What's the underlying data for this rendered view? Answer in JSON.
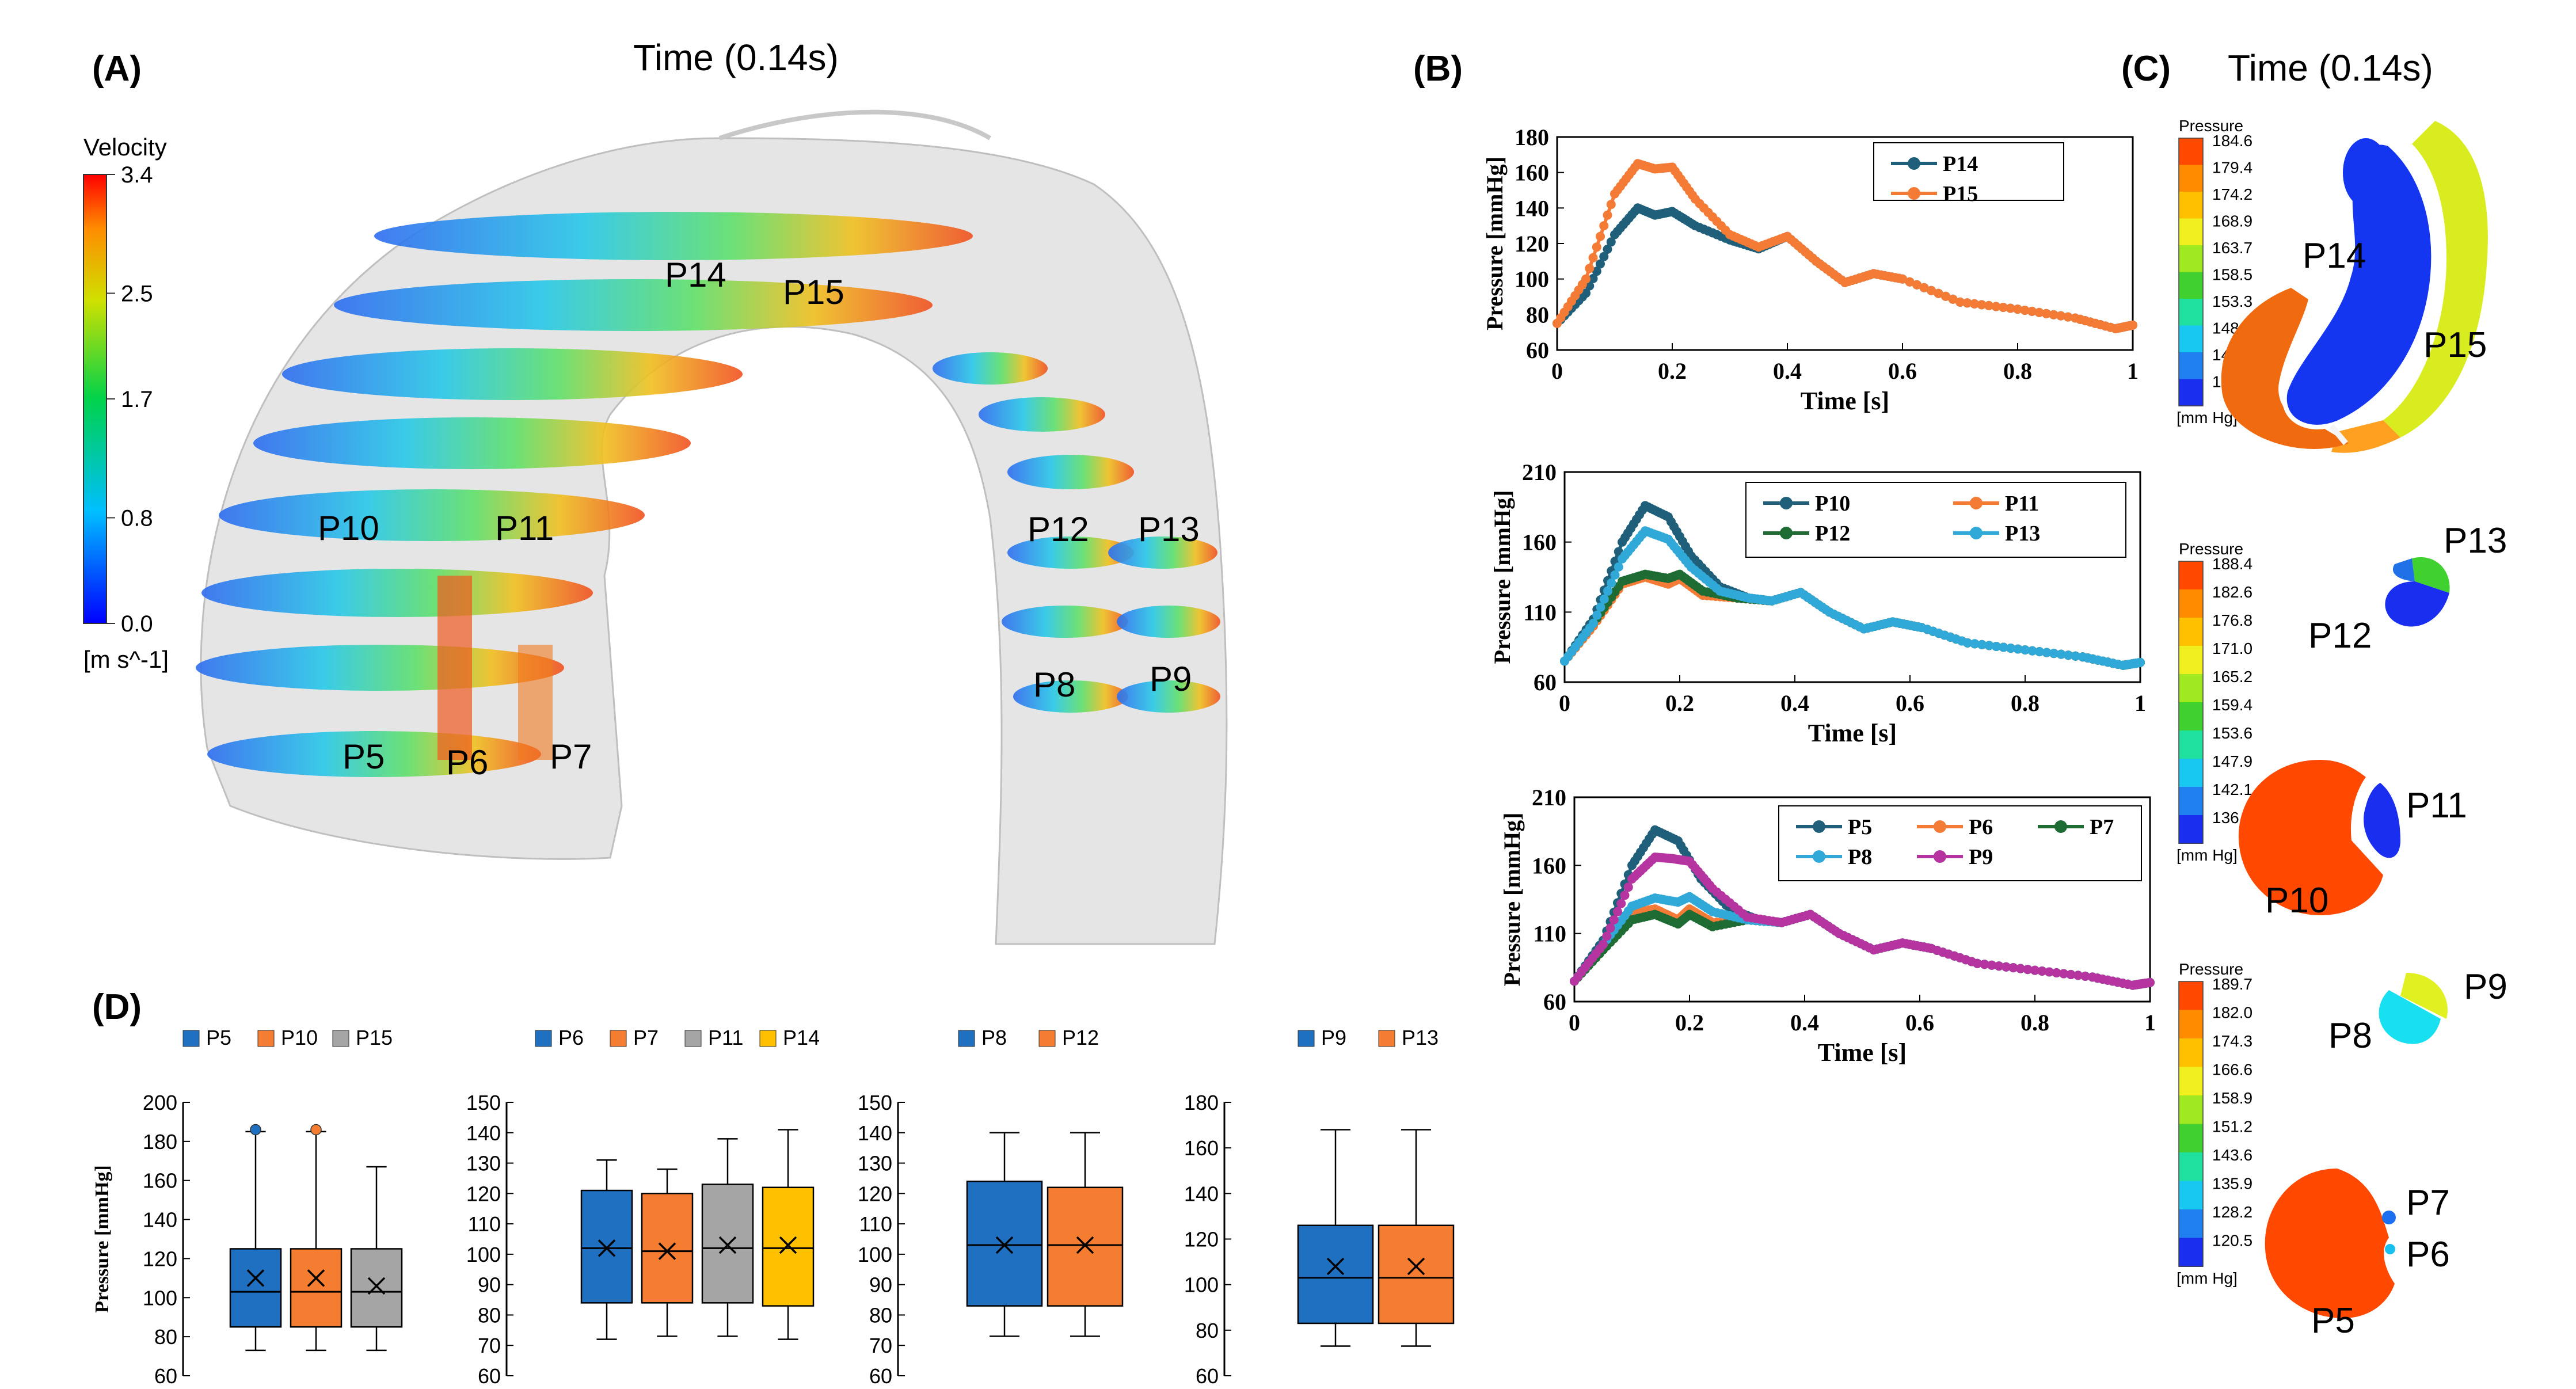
{
  "panelA": {
    "label": "(A)",
    "time_title": "Time (0.14s)",
    "colorbar": {
      "title": "Velocity",
      "ticks": [
        "3.4",
        "2.5",
        "1.7",
        "0.8",
        "0.0"
      ],
      "unit": "[m s^-1]"
    },
    "points": [
      "P14",
      "P15",
      "P10",
      "P11",
      "P12",
      "P13",
      "P8",
      "P9",
      "P5",
      "P6",
      "P7"
    ]
  },
  "panelB": {
    "label": "(B)"
  },
  "panelC": {
    "label": "(C)",
    "time_title": "Time (0.14s)",
    "scales": [
      {
        "title": "Pressure",
        "unit": "[mm Hg]",
        "ticks": [
          "184.6",
          "179.4",
          "174.2",
          "168.9",
          "163.7",
          "158.5",
          "153.3",
          "148.0",
          "142.8",
          "137.6"
        ]
      },
      {
        "title": "Pressure",
        "unit": "[mm Hg]",
        "ticks": [
          "188.4",
          "182.6",
          "176.8",
          "171.0",
          "165.2",
          "159.4",
          "153.6",
          "147.9",
          "142.1",
          "136.3"
        ]
      },
      {
        "title": "Pressure",
        "unit": "[mm Hg]",
        "ticks": [
          "189.7",
          "182.0",
          "174.3",
          "166.6",
          "158.9",
          "151.2",
          "143.6",
          "135.9",
          "128.2",
          "120.5"
        ]
      }
    ],
    "points": [
      "P14",
      "P15",
      "P13",
      "P12",
      "P11",
      "P10",
      "P9",
      "P8",
      "P7",
      "P6",
      "P5"
    ]
  },
  "panelD": {
    "label": "(D)"
  },
  "colors": {
    "P5": "#1f5f7a",
    "P6": "#f47b36",
    "P7": "#1e6b34",
    "P8": "#30a8d8",
    "P9": "#b5349f",
    "P10": "#1f5f7a",
    "P11": "#f47b36",
    "P12": "#1e6b34",
    "P13": "#30a8d8",
    "P14": "#1f5f7a",
    "P15": "#f47b36",
    "box_blue": "#1f70c1",
    "box_orange": "#f47d31",
    "box_gray": "#a5a5a5",
    "box_yellow": "#ffc000"
  },
  "chart_data": [
    {
      "type": "line",
      "id": "B1",
      "xlabel": "Time [s]",
      "ylabel": "Pressure [mmHg]",
      "xlim": [
        0,
        1
      ],
      "ylim": [
        60,
        180
      ],
      "xticks": [
        "0",
        "0.2",
        "0.4",
        "0.6",
        "0.8",
        "1"
      ],
      "yticks": [
        "60",
        "80",
        "100",
        "120",
        "140",
        "160",
        "180"
      ],
      "series": [
        {
          "name": "P14",
          "x": [
            0,
            0.05,
            0.1,
            0.14,
            0.17,
            0.2,
            0.24,
            0.3,
            0.35,
            0.4,
            0.45,
            0.5,
            0.55,
            0.6,
            0.7,
            0.8,
            0.9,
            0.97,
            1
          ],
          "y": [
            75,
            92,
            125,
            140,
            136,
            138,
            130,
            122,
            117,
            124,
            110,
            98,
            103,
            100,
            87,
            83,
            78,
            72,
            74
          ]
        },
        {
          "name": "P15",
          "x": [
            0,
            0.05,
            0.1,
            0.14,
            0.17,
            0.2,
            0.24,
            0.3,
            0.35,
            0.4,
            0.45,
            0.5,
            0.55,
            0.6,
            0.7,
            0.8,
            0.9,
            0.97,
            1
          ],
          "y": [
            75,
            100,
            148,
            165,
            162,
            163,
            145,
            125,
            118,
            124,
            110,
            98,
            103,
            100,
            87,
            83,
            78,
            72,
            74
          ]
        }
      ]
    },
    {
      "type": "line",
      "id": "B2",
      "xlabel": "Time [s]",
      "ylabel": "Pressure [mmHg]",
      "xlim": [
        0,
        1
      ],
      "ylim": [
        60,
        210
      ],
      "xticks": [
        "0",
        "0.2",
        "0.4",
        "0.6",
        "0.8",
        "1"
      ],
      "yticks": [
        "60",
        "110",
        "160",
        "210"
      ],
      "series": [
        {
          "name": "P10",
          "x": [
            0,
            0.05,
            0.1,
            0.14,
            0.18,
            0.22,
            0.27,
            0.32,
            0.36,
            0.41,
            0.46,
            0.52,
            0.57,
            0.62,
            0.7,
            0.8,
            0.9,
            0.97,
            1
          ],
          "y": [
            75,
            105,
            160,
            186,
            178,
            150,
            128,
            120,
            118,
            124,
            110,
            98,
            103,
            99,
            88,
            83,
            78,
            72,
            74
          ]
        },
        {
          "name": "P11",
          "x": [
            0,
            0.05,
            0.1,
            0.14,
            0.18,
            0.2,
            0.24,
            0.3,
            0.36,
            0.41,
            0.46,
            0.52,
            0.57,
            0.62,
            0.7,
            0.8,
            0.9,
            0.97,
            1
          ],
          "y": [
            75,
            100,
            130,
            135,
            130,
            134,
            122,
            120,
            118,
            124,
            110,
            98,
            103,
            99,
            88,
            83,
            78,
            72,
            74
          ]
        },
        {
          "name": "P12",
          "x": [
            0,
            0.05,
            0.1,
            0.14,
            0.18,
            0.2,
            0.24,
            0.3,
            0.36,
            0.41,
            0.46,
            0.52,
            0.57,
            0.62,
            0.7,
            0.8,
            0.9,
            0.97,
            1
          ],
          "y": [
            75,
            102,
            132,
            137,
            134,
            137,
            125,
            120,
            118,
            124,
            110,
            98,
            103,
            99,
            88,
            83,
            78,
            72,
            74
          ]
        },
        {
          "name": "P13",
          "x": [
            0,
            0.05,
            0.1,
            0.14,
            0.18,
            0.22,
            0.27,
            0.32,
            0.36,
            0.41,
            0.46,
            0.52,
            0.57,
            0.62,
            0.7,
            0.8,
            0.9,
            0.97,
            1
          ],
          "y": [
            75,
            102,
            148,
            168,
            162,
            142,
            125,
            120,
            118,
            124,
            110,
            98,
            103,
            99,
            88,
            83,
            78,
            72,
            74
          ]
        }
      ]
    },
    {
      "type": "line",
      "id": "B3",
      "xlabel": "Time [s]",
      "ylabel": "Pressure [mmHg]",
      "xlim": [
        0,
        1
      ],
      "ylim": [
        60,
        210
      ],
      "xticks": [
        "0",
        "0.2",
        "0.4",
        "0.6",
        "0.8",
        "1"
      ],
      "yticks": [
        "60",
        "110",
        "160",
        "210"
      ],
      "series": [
        {
          "name": "P5",
          "x": [
            0,
            0.05,
            0.1,
            0.14,
            0.18,
            0.22,
            0.27,
            0.32,
            0.36,
            0.41,
            0.46,
            0.52,
            0.57,
            0.62,
            0.7,
            0.8,
            0.9,
            0.97,
            1
          ],
          "y": [
            75,
            105,
            160,
            186,
            178,
            150,
            128,
            120,
            118,
            124,
            110,
            98,
            103,
            99,
            88,
            83,
            78,
            72,
            74
          ]
        },
        {
          "name": "P6",
          "x": [
            0,
            0.05,
            0.1,
            0.14,
            0.18,
            0.2,
            0.24,
            0.3,
            0.36,
            0.41,
            0.46,
            0.52,
            0.57,
            0.62,
            0.7,
            0.8,
            0.9,
            0.97,
            1
          ],
          "y": [
            75,
            100,
            125,
            128,
            120,
            128,
            118,
            120,
            118,
            124,
            110,
            98,
            103,
            99,
            88,
            83,
            78,
            72,
            74
          ]
        },
        {
          "name": "P7",
          "x": [
            0,
            0.05,
            0.1,
            0.14,
            0.18,
            0.2,
            0.24,
            0.3,
            0.36,
            0.41,
            0.46,
            0.52,
            0.57,
            0.62,
            0.7,
            0.8,
            0.9,
            0.97,
            1
          ],
          "y": [
            75,
            98,
            120,
            124,
            117,
            124,
            115,
            120,
            118,
            124,
            110,
            98,
            103,
            99,
            88,
            83,
            78,
            72,
            74
          ]
        },
        {
          "name": "P8",
          "x": [
            0,
            0.05,
            0.1,
            0.14,
            0.18,
            0.2,
            0.24,
            0.3,
            0.36,
            0.41,
            0.46,
            0.52,
            0.57,
            0.62,
            0.7,
            0.8,
            0.9,
            0.97,
            1
          ],
          "y": [
            75,
            102,
            130,
            136,
            133,
            137,
            126,
            120,
            118,
            124,
            110,
            98,
            103,
            99,
            88,
            83,
            78,
            72,
            74
          ]
        },
        {
          "name": "P9",
          "x": [
            0,
            0.05,
            0.1,
            0.14,
            0.17,
            0.2,
            0.24,
            0.3,
            0.36,
            0.41,
            0.46,
            0.52,
            0.57,
            0.62,
            0.7,
            0.8,
            0.9,
            0.97,
            1
          ],
          "y": [
            75,
            102,
            150,
            166,
            165,
            163,
            143,
            122,
            118,
            124,
            110,
            98,
            103,
            99,
            88,
            83,
            78,
            72,
            74
          ]
        }
      ]
    },
    {
      "type": "box",
      "id": "D1",
      "ylabel": "Pressure [mmHg]",
      "ylim": [
        60,
        200
      ],
      "yticks": [
        "60",
        "80",
        "100",
        "120",
        "140",
        "160",
        "180",
        "200"
      ],
      "series": [
        {
          "name": "P5",
          "min": 73,
          "q1": 85,
          "median": 103,
          "q3": 125,
          "max": 185,
          "mean": 110,
          "outlier": 186
        },
        {
          "name": "P10",
          "min": 73,
          "q1": 85,
          "median": 103,
          "q3": 125,
          "max": 185,
          "mean": 110,
          "outlier": 186
        },
        {
          "name": "P15",
          "min": 73,
          "q1": 85,
          "median": 103,
          "q3": 125,
          "max": 167,
          "mean": 106
        }
      ]
    },
    {
      "type": "box",
      "id": "D2",
      "ylim": [
        60,
        150
      ],
      "yticks": [
        "60",
        "70",
        "80",
        "90",
        "100",
        "110",
        "120",
        "130",
        "140",
        "150"
      ],
      "series": [
        {
          "name": "P6",
          "min": 72,
          "q1": 84,
          "median": 102,
          "q3": 121,
          "max": 131,
          "mean": 102
        },
        {
          "name": "P7",
          "min": 73,
          "q1": 84,
          "median": 101,
          "q3": 120,
          "max": 128,
          "mean": 101
        },
        {
          "name": "P11",
          "min": 73,
          "q1": 84,
          "median": 102,
          "q3": 123,
          "max": 138,
          "mean": 103
        },
        {
          "name": "P14",
          "min": 72,
          "q1": 83,
          "median": 102,
          "q3": 122,
          "max": 141,
          "mean": 103
        }
      ]
    },
    {
      "type": "box",
      "id": "D3",
      "ylim": [
        60,
        150
      ],
      "yticks": [
        "60",
        "70",
        "80",
        "90",
        "100",
        "110",
        "120",
        "130",
        "140",
        "150"
      ],
      "series": [
        {
          "name": "P8",
          "min": 73,
          "q1": 83,
          "median": 103,
          "q3": 124,
          "max": 140,
          "mean": 103
        },
        {
          "name": "P12",
          "min": 73,
          "q1": 83,
          "median": 103,
          "q3": 122,
          "max": 140,
          "mean": 103
        }
      ]
    },
    {
      "type": "box",
      "id": "D4",
      "ylim": [
        60,
        180
      ],
      "yticks": [
        "60",
        "80",
        "100",
        "120",
        "140",
        "160",
        "180"
      ],
      "series": [
        {
          "name": "P9",
          "min": 73,
          "q1": 83,
          "median": 103,
          "q3": 126,
          "max": 168,
          "mean": 108
        },
        {
          "name": "P13",
          "min": 73,
          "q1": 83,
          "median": 103,
          "q3": 126,
          "max": 168,
          "mean": 108
        }
      ]
    }
  ]
}
